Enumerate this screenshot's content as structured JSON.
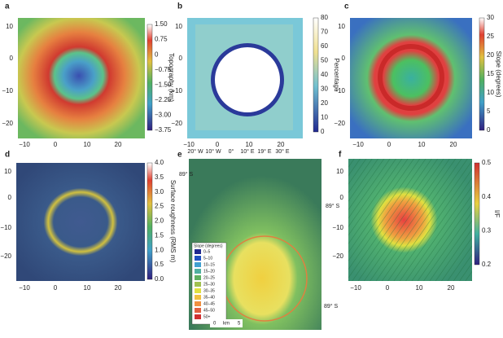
{
  "panels": [
    {
      "label": "a",
      "yticks": [
        "10",
        "0",
        "−10",
        "−20"
      ],
      "xticks": [
        "−10",
        "0",
        "10",
        "20"
      ],
      "colorbar": {
        "ticks": [
          "1.50",
          "0.75",
          "0",
          "−0.75",
          "−1.50",
          "−2.25",
          "−3.00",
          "−3.75"
        ],
        "label": "Topography (km)"
      }
    },
    {
      "label": "b",
      "yticks": [
        "10",
        "0",
        "−10",
        "−20"
      ],
      "xticks": [
        "−10",
        "0",
        "10",
        "20"
      ],
      "colorbar": {
        "ticks": [
          "80",
          "70",
          "60",
          "50",
          "40",
          "30",
          "20",
          "10",
          "0"
        ],
        "label": "Percentage"
      }
    },
    {
      "label": "c",
      "yticks": [
        "10",
        "0",
        "−10",
        "−20"
      ],
      "xticks": [
        "−10",
        "0",
        "10",
        "20"
      ],
      "colorbar": {
        "ticks": [
          "30",
          "25",
          "20",
          "15",
          "10",
          "5",
          "0"
        ],
        "label": "Slope (degrees)"
      }
    },
    {
      "label": "d",
      "yticks": [
        "10",
        "0",
        "−10",
        "−20"
      ],
      "xticks": [
        "−10",
        "0",
        "10",
        "20"
      ],
      "colorbar": {
        "ticks": [
          "4.0",
          "3.5",
          "3.0",
          "2.5",
          "2.0",
          "1.5",
          "1.0",
          "0.5",
          "0.0"
        ],
        "label": "Surface roughness (RMS m)"
      }
    },
    {
      "label": "f",
      "yticks": [
        "10",
        "0",
        "−10",
        "−20"
      ],
      "xticks": [
        "−10",
        "0",
        "10",
        "20"
      ],
      "colorbar": {
        "ticks": [
          "0.5",
          "0.4",
          "0.3",
          "0.2"
        ],
        "label": "I/F"
      }
    }
  ],
  "panel_e": {
    "label": "e",
    "longitudes": [
      "20° W",
      "10° W",
      "0°",
      "10° E",
      "19° E",
      "30° E"
    ],
    "latitudes": [
      "89° S",
      "89° S",
      "89° S"
    ],
    "legend": {
      "title": "Slope (degrees)",
      "items": [
        "0–5",
        "5–10",
        "10–15",
        "15–20",
        "20–25",
        "25–30",
        "30–35",
        "35–40",
        "40–45",
        "45–50",
        "50+"
      ]
    },
    "scale": [
      "0",
      "km",
      "5"
    ]
  }
}
